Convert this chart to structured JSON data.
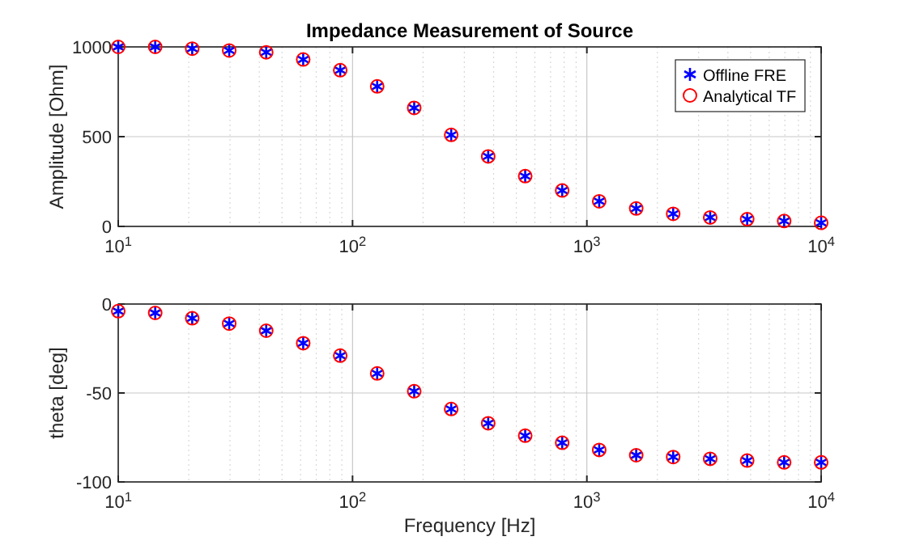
{
  "chart_data": [
    {
      "type": "scatter",
      "title": "Impedance Measurement of Source",
      "ylabel": "Amplitude [Ohm]",
      "log": "x",
      "grid": true,
      "legend": "top right",
      "x": [
        10,
        14.38,
        20.69,
        29.76,
        42.81,
        61.58,
        88.59,
        127.4,
        183.3,
        263.7,
        379.3,
        545.6,
        784.8,
        1129,
        1624,
        2336,
        3360,
        4833,
        6952,
        10000
      ],
      "xlim": [
        10,
        10000
      ],
      "xticks": [
        {
          "value": 10,
          "label": "10$^{1}$"
        },
        {
          "value": 100,
          "label": "10$^{2}$"
        },
        {
          "value": 1000,
          "label": "10$^{3}$"
        },
        {
          "value": 10000,
          "label": "10$^{4}$"
        }
      ],
      "ylim": [
        0,
        1000
      ],
      "yticks": [
        0,
        500,
        1000
      ],
      "series": [
        {
          "name": "Offline FRE",
          "color": "#0000ff",
          "marker": "cross",
          "values": [
            1000,
            1000,
            990,
            980,
            970,
            930,
            870,
            780,
            660,
            510,
            390,
            280,
            200,
            140,
            100,
            70,
            50,
            40,
            30,
            20
          ]
        },
        {
          "name": "Analytical TF",
          "color": "#ff0000",
          "marker": "circle",
          "values": [
            1000,
            1000,
            990,
            980,
            970,
            930,
            870,
            780,
            660,
            510,
            390,
            280,
            200,
            140,
            100,
            70,
            50,
            40,
            30,
            20
          ]
        }
      ]
    },
    {
      "type": "scatter",
      "xlabel": "Frequency [Hz]",
      "ylabel": "theta [deg]",
      "log": "x",
      "grid": true,
      "x": [
        10,
        14.38,
        20.69,
        29.76,
        42.81,
        61.58,
        88.59,
        127.4,
        183.3,
        263.7,
        379.3,
        545.6,
        784.8,
        1129,
        1624,
        2336,
        3360,
        4833,
        6952,
        10000
      ],
      "xlim": [
        10,
        10000
      ],
      "xticks": [
        {
          "value": 10,
          "label": "10$^{1}$"
        },
        {
          "value": 100,
          "label": "10$^{2}$"
        },
        {
          "value": 1000,
          "label": "10$^{3}$"
        },
        {
          "value": 10000,
          "label": "10$^{4}$"
        }
      ],
      "ylim": [
        -100,
        0
      ],
      "yticks": [
        -100,
        -50,
        0
      ],
      "series": [
        {
          "color": "#0000ff",
          "marker": "cross",
          "values": [
            -4,
            -5,
            -8,
            -11,
            -15,
            -22,
            -29,
            -39,
            -49,
            -59,
            -67,
            -74,
            -78,
            -82,
            -85,
            -86,
            -87,
            -88,
            -89,
            -89
          ]
        },
        {
          "color": "#ff0000",
          "marker": "circle",
          "values": [
            -4,
            -5,
            -8,
            -11,
            -15,
            -22,
            -29,
            -39,
            -49,
            -59,
            -67,
            -74,
            -78,
            -82,
            -85,
            -86,
            -87,
            -88,
            -89,
            -89
          ]
        }
      ]
    }
  ]
}
